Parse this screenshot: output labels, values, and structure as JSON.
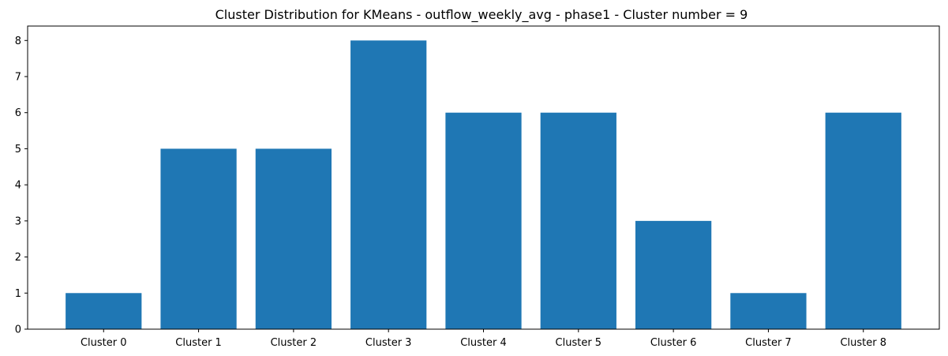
{
  "chart_data": {
    "type": "bar",
    "title": "Cluster Distribution for KMeans - outflow_weekly_avg - phase1 - Cluster number = 9",
    "xlabel": "",
    "ylabel": "",
    "categories": [
      "Cluster 0",
      "Cluster 1",
      "Cluster 2",
      "Cluster 3",
      "Cluster 4",
      "Cluster 5",
      "Cluster 6",
      "Cluster 7",
      "Cluster 8"
    ],
    "values": [
      1,
      5,
      5,
      8,
      6,
      6,
      3,
      1,
      6
    ],
    "ylim": [
      0,
      8.4
    ],
    "yticks": [
      0,
      1,
      2,
      3,
      4,
      5,
      6,
      7,
      8
    ],
    "grid": false,
    "legend": "none",
    "bar_color": "#1f77b4"
  }
}
